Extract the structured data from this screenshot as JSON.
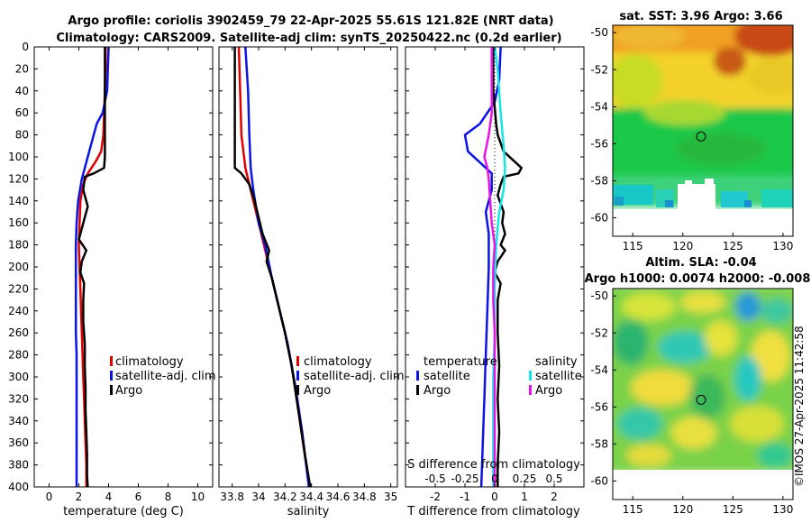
{
  "title": {
    "line1": "Argo profile: coriolis 3902459_79 22-Apr-2025 55.61S 121.82E (NRT data)",
    "line2": "Climatology: CARS2009. Satellite-adj clim: synTS_20250422.nc (0.2d earlier)"
  },
  "watermark": "©IMOS 27-Apr-2025 11:42:58",
  "colors": {
    "climatology": "#e00000",
    "satellite": "#0a14e6",
    "argo": "#000000",
    "cyan": "#14e6e6",
    "magenta": "#e614e6"
  },
  "chart_data": [
    {
      "id": "temperature",
      "type": "line",
      "xlabel": "temperature (deg C)",
      "ylabel": "",
      "xlim": [
        -1,
        11
      ],
      "ylim": [
        400,
        0
      ],
      "xticks": [
        "0",
        "2",
        "4",
        "6",
        "8",
        "10"
      ],
      "xtick_values": [
        0,
        2,
        4,
        6,
        8,
        10
      ],
      "yticks": [
        "0",
        "20",
        "40",
        "60",
        "80",
        "100",
        "120",
        "140",
        "160",
        "180",
        "200",
        "220",
        "240",
        "260",
        "280",
        "300",
        "320",
        "340",
        "360",
        "380",
        "400"
      ],
      "legend": [
        "climatology",
        "satellite-adj. clim",
        "Argo"
      ],
      "series": [
        {
          "name": "climatology",
          "color": "#e00000",
          "points": [
            [
              3.8,
              0
            ],
            [
              3.8,
              20
            ],
            [
              3.75,
              40
            ],
            [
              3.7,
              60
            ],
            [
              3.65,
              80
            ],
            [
              3.5,
              95
            ],
            [
              3.1,
              105
            ],
            [
              2.6,
              115
            ],
            [
              2.3,
              125
            ],
            [
              2.1,
              140
            ],
            [
              2.05,
              160
            ],
            [
              2.0,
              180
            ],
            [
              2.05,
              200
            ],
            [
              2.1,
              220
            ],
            [
              2.15,
              240
            ],
            [
              2.2,
              260
            ],
            [
              2.25,
              280
            ],
            [
              2.3,
              300
            ],
            [
              2.35,
              320
            ],
            [
              2.4,
              340
            ],
            [
              2.45,
              360
            ],
            [
              2.5,
              380
            ],
            [
              2.5,
              400
            ]
          ]
        },
        {
          "name": "satellite-adj. clim",
          "color": "#0a14e6",
          "points": [
            [
              4.0,
              0
            ],
            [
              3.95,
              20
            ],
            [
              3.9,
              40
            ],
            [
              3.6,
              60
            ],
            [
              3.2,
              70
            ],
            [
              3.0,
              80
            ],
            [
              2.6,
              100
            ],
            [
              2.2,
              120
            ],
            [
              1.95,
              140
            ],
            [
              1.85,
              160
            ],
            [
              1.8,
              180
            ],
            [
              1.8,
              200
            ],
            [
              1.8,
              220
            ],
            [
              1.8,
              240
            ],
            [
              1.8,
              260
            ],
            [
              1.85,
              280
            ],
            [
              1.85,
              300
            ],
            [
              1.85,
              320
            ],
            [
              1.85,
              340
            ],
            [
              1.85,
              360
            ],
            [
              1.85,
              380
            ],
            [
              1.85,
              400
            ]
          ]
        },
        {
          "name": "Argo",
          "color": "#000000",
          "points": [
            [
              3.75,
              0
            ],
            [
              3.75,
              20
            ],
            [
              3.75,
              40
            ],
            [
              3.75,
              60
            ],
            [
              3.75,
              80
            ],
            [
              3.75,
              100
            ],
            [
              3.7,
              110
            ],
            [
              3.0,
              115
            ],
            [
              2.4,
              118
            ],
            [
              2.3,
              130
            ],
            [
              2.6,
              145
            ],
            [
              2.4,
              155
            ],
            [
              2.2,
              165
            ],
            [
              2.0,
              175
            ],
            [
              2.5,
              185
            ],
            [
              2.2,
              195
            ],
            [
              2.1,
              205
            ],
            [
              2.35,
              215
            ],
            [
              2.3,
              230
            ],
            [
              2.3,
              250
            ],
            [
              2.4,
              270
            ],
            [
              2.4,
              290
            ],
            [
              2.45,
              310
            ],
            [
              2.45,
              330
            ],
            [
              2.5,
              350
            ],
            [
              2.55,
              370
            ],
            [
              2.55,
              390
            ],
            [
              2.6,
              400
            ]
          ]
        }
      ]
    },
    {
      "id": "salinity",
      "type": "line",
      "xlabel": "salinity",
      "xlim": [
        33.7,
        35.05
      ],
      "ylim": [
        400,
        0
      ],
      "xticks": [
        "33.8",
        "34",
        "34.2",
        "34.4",
        "34.6",
        "34.8",
        "35"
      ],
      "xtick_values": [
        33.8,
        34.0,
        34.2,
        34.4,
        34.6,
        34.8,
        35.0
      ],
      "legend": [
        "climatology",
        "satellite-adj. clim",
        "Argo"
      ],
      "series": [
        {
          "name": "climatology",
          "color": "#e00000",
          "points": [
            [
              33.85,
              0
            ],
            [
              33.86,
              40
            ],
            [
              33.87,
              80
            ],
            [
              33.9,
              110
            ],
            [
              33.94,
              130
            ],
            [
              34.0,
              160
            ],
            [
              34.04,
              180
            ],
            [
              34.08,
              200
            ],
            [
              34.14,
              230
            ],
            [
              34.2,
              260
            ],
            [
              34.25,
              290
            ],
            [
              34.3,
              330
            ],
            [
              34.36,
              380
            ],
            [
              34.39,
              400
            ]
          ]
        },
        {
          "name": "satellite-adj. clim",
          "color": "#0a14e6",
          "points": [
            [
              33.9,
              0
            ],
            [
              33.92,
              40
            ],
            [
              33.93,
              80
            ],
            [
              33.94,
              110
            ],
            [
              33.96,
              130
            ],
            [
              34.0,
              160
            ],
            [
              34.05,
              180
            ],
            [
              34.1,
              210
            ],
            [
              34.16,
              240
            ],
            [
              34.22,
              270
            ],
            [
              34.28,
              310
            ],
            [
              34.33,
              350
            ],
            [
              34.38,
              400
            ]
          ]
        },
        {
          "name": "Argo",
          "color": "#000000",
          "points": [
            [
              33.82,
              0
            ],
            [
              33.82,
              40
            ],
            [
              33.82,
              80
            ],
            [
              33.82,
              110
            ],
            [
              33.87,
              115
            ],
            [
              33.93,
              125
            ],
            [
              33.97,
              140
            ],
            [
              34.0,
              155
            ],
            [
              34.03,
              170
            ],
            [
              34.08,
              185
            ],
            [
              34.06,
              195
            ],
            [
              34.1,
              210
            ],
            [
              34.15,
              235
            ],
            [
              34.2,
              260
            ],
            [
              34.25,
              290
            ],
            [
              34.3,
              330
            ],
            [
              34.35,
              370
            ],
            [
              34.39,
              400
            ]
          ]
        }
      ]
    },
    {
      "id": "difference",
      "type": "line",
      "xlabel": "T difference from climatology",
      "top_label": "S difference from climatology",
      "xlim": [
        -3,
        3
      ],
      "ylim": [
        400,
        0
      ],
      "xticks": [
        "-2",
        "-1",
        "0",
        "1",
        "2"
      ],
      "xtick_values": [
        -2,
        -1,
        0,
        1,
        2
      ],
      "sticks": [
        "-0.5",
        "-0.25",
        "0",
        "0.25",
        "0.5"
      ],
      "stick_values": [
        -2,
        -1,
        0,
        1,
        2
      ],
      "legend_t": [
        "temperature",
        "satellite",
        "Argo"
      ],
      "legend_s": [
        "salinity",
        "satellite",
        "Argo"
      ],
      "series": [
        {
          "name": "T satellite",
          "color": "#0a14e6",
          "points": [
            [
              0.2,
              0
            ],
            [
              0.15,
              30
            ],
            [
              0.0,
              50
            ],
            [
              -0.5,
              70
            ],
            [
              -1.0,
              80
            ],
            [
              -0.9,
              95
            ],
            [
              -0.5,
              105
            ],
            [
              -0.1,
              115
            ],
            [
              -0.1,
              130
            ],
            [
              -0.3,
              150
            ],
            [
              -0.2,
              170
            ],
            [
              -0.2,
              200
            ],
            [
              -0.25,
              240
            ],
            [
              -0.3,
              280
            ],
            [
              -0.35,
              320
            ],
            [
              -0.4,
              360
            ],
            [
              -0.45,
              400
            ]
          ]
        },
        {
          "name": "T Argo",
          "color": "#000000",
          "points": [
            [
              -0.05,
              0
            ],
            [
              -0.05,
              40
            ],
            [
              0.05,
              70
            ],
            [
              0.1,
              80
            ],
            [
              0.3,
              95
            ],
            [
              0.9,
              110
            ],
            [
              0.8,
              115
            ],
            [
              0.3,
              118
            ],
            [
              0.2,
              125
            ],
            [
              0.1,
              135
            ],
            [
              0.3,
              150
            ],
            [
              0.25,
              160
            ],
            [
              0.35,
              170
            ],
            [
              0.2,
              180
            ],
            [
              0.35,
              185
            ],
            [
              0.1,
              195
            ],
            [
              0.0,
              205
            ],
            [
              0.2,
              215
            ],
            [
              0.1,
              230
            ],
            [
              0.1,
              260
            ],
            [
              0.15,
              290
            ],
            [
              0.1,
              320
            ],
            [
              0.15,
              350
            ],
            [
              0.1,
              380
            ],
            [
              0.1,
              400
            ]
          ]
        },
        {
          "name": "S satellite",
          "color": "#14e6e6",
          "points": [
            [
              0.0,
              0
            ],
            [
              0.1,
              20
            ],
            [
              0.2,
              60
            ],
            [
              0.3,
              90
            ],
            [
              0.35,
              110
            ],
            [
              0.3,
              130
            ],
            [
              0.15,
              150
            ],
            [
              0.05,
              180
            ],
            [
              0.0,
              220
            ],
            [
              0.0,
              260
            ],
            [
              -0.05,
              300
            ],
            [
              -0.05,
              340
            ],
            [
              -0.05,
              400
            ]
          ]
        },
        {
          "name": "S Argo",
          "color": "#e614e6",
          "points": [
            [
              -0.1,
              0
            ],
            [
              -0.1,
              30
            ],
            [
              -0.1,
              60
            ],
            [
              -0.2,
              80
            ],
            [
              -0.35,
              100
            ],
            [
              -0.25,
              110
            ],
            [
              -0.2,
              120
            ],
            [
              -0.15,
              140
            ],
            [
              -0.1,
              160
            ],
            [
              0.0,
              180
            ],
            [
              -0.05,
              200
            ],
            [
              -0.05,
              230
            ],
            [
              0.0,
              260
            ],
            [
              0.0,
              300
            ],
            [
              0.0,
              340
            ],
            [
              0.0,
              380
            ],
            [
              0.0,
              400
            ]
          ]
        }
      ]
    },
    {
      "id": "sst_map",
      "type": "heatmap",
      "title": "sat. SST: 3.96 Argo: 3.66",
      "xlim": [
        113,
        131
      ],
      "ylim": [
        -61,
        -49.6
      ],
      "xticks": [
        "115",
        "120",
        "125",
        "130"
      ],
      "xtick_values": [
        115,
        120,
        125,
        130
      ],
      "yticks": [
        "-50",
        "-52",
        "-54",
        "-56",
        "-58",
        "-60"
      ],
      "ytick_values": [
        -50,
        -52,
        -54,
        -56,
        -58,
        -60
      ],
      "marker": [
        121.82,
        -55.61
      ]
    },
    {
      "id": "sla_map",
      "type": "heatmap",
      "title_line1": "Altim. SLA: -0.04",
      "title_line2": "Argo h1000: 0.0074 h2000: -0.008",
      "xlim": [
        113,
        131
      ],
      "ylim": [
        -61,
        -49.6
      ],
      "xticks": [
        "115",
        "120",
        "125",
        "130"
      ],
      "xtick_values": [
        115,
        120,
        125,
        130
      ],
      "yticks": [
        "-50",
        "-52",
        "-54",
        "-56",
        "-58",
        "-60"
      ],
      "ytick_values": [
        -50,
        -52,
        -54,
        -56,
        -58,
        -60
      ],
      "marker": [
        121.82,
        -55.61
      ]
    }
  ]
}
